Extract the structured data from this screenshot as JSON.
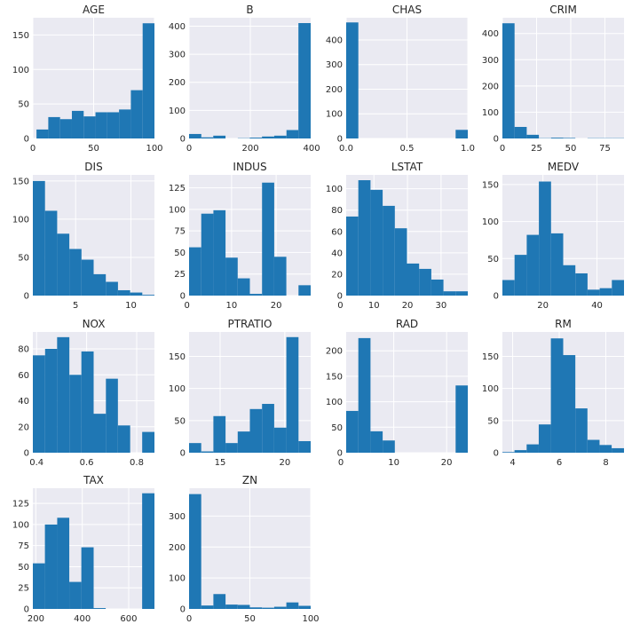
{
  "figure": {
    "background": "#ffffff",
    "panel_background": "#EAEAF2",
    "grid_color": "#ffffff",
    "bar_color": "#1F77B4"
  },
  "chart_data": [
    {
      "type": "bar",
      "title": "AGE",
      "xlim": [
        0,
        100
      ],
      "ylim": [
        0,
        175
      ],
      "xticks": [
        0,
        50,
        100
      ],
      "yticks": [
        0,
        50,
        100,
        150
      ],
      "bins": [
        [
          3,
          12.7
        ],
        [
          12.7,
          22.4
        ],
        [
          22.4,
          32.1
        ],
        [
          32.1,
          41.8
        ],
        [
          41.8,
          51.5
        ],
        [
          51.5,
          61.2
        ],
        [
          61.2,
          70.9
        ],
        [
          70.9,
          80.6
        ],
        [
          80.6,
          90.3
        ],
        [
          90.3,
          100
        ]
      ],
      "values": [
        13,
        31,
        28,
        40,
        32,
        38,
        38,
        42,
        70,
        167
      ]
    },
    {
      "type": "bar",
      "title": "B",
      "xlim": [
        0,
        397
      ],
      "ylim": [
        0,
        430
      ],
      "xticks": [
        0,
        200,
        400
      ],
      "yticks": [
        0,
        100,
        200,
        300,
        400
      ],
      "bins": [
        [
          0,
          40
        ],
        [
          40,
          79
        ],
        [
          79,
          119
        ],
        [
          119,
          159
        ],
        [
          159,
          198
        ],
        [
          198,
          238
        ],
        [
          238,
          278
        ],
        [
          278,
          318
        ],
        [
          318,
          357
        ],
        [
          357,
          397
        ]
      ],
      "values": [
        16,
        4,
        10,
        0,
        1,
        3,
        7,
        10,
        30,
        411
      ]
    },
    {
      "type": "bar",
      "title": "CHAS",
      "xlim": [
        0,
        1
      ],
      "ylim": [
        0,
        490
      ],
      "xticks": [
        0,
        0.5,
        1
      ],
      "xticklabels": [
        "0.0",
        "0.5",
        "1.0"
      ],
      "yticks": [
        0,
        100,
        200,
        300,
        400
      ],
      "bins": [
        [
          0,
          0.1
        ],
        [
          0.1,
          0.2
        ],
        [
          0.2,
          0.3
        ],
        [
          0.3,
          0.4
        ],
        [
          0.4,
          0.5
        ],
        [
          0.5,
          0.6
        ],
        [
          0.6,
          0.7
        ],
        [
          0.7,
          0.8
        ],
        [
          0.8,
          0.9
        ],
        [
          0.9,
          1
        ]
      ],
      "values": [
        471,
        0,
        0,
        0,
        0,
        0,
        0,
        0,
        0,
        35
      ]
    },
    {
      "type": "bar",
      "title": "CRIM",
      "xlim": [
        0,
        89
      ],
      "ylim": [
        0,
        460
      ],
      "xticks": [
        0,
        25,
        50,
        75
      ],
      "yticks": [
        0,
        100,
        200,
        300,
        400
      ],
      "bins": [
        [
          0,
          8.9
        ],
        [
          8.9,
          17.8
        ],
        [
          17.8,
          26.7
        ],
        [
          26.7,
          35.6
        ],
        [
          35.6,
          44.5
        ],
        [
          44.5,
          53.4
        ],
        [
          53.4,
          62.3
        ],
        [
          62.3,
          71.2
        ],
        [
          71.2,
          80.1
        ],
        [
          80.1,
          89
        ]
      ],
      "values": [
        439,
        44,
        14,
        1,
        3,
        2,
        0,
        1,
        1,
        1
      ]
    },
    {
      "type": "bar",
      "title": "DIS",
      "xlim": [
        1.13,
        12.13
      ],
      "ylim": [
        0,
        158
      ],
      "xticks": [
        5,
        10
      ],
      "yticks": [
        0,
        50,
        100,
        150
      ],
      "bins": [
        [
          1.13,
          2.23
        ],
        [
          2.23,
          3.33
        ],
        [
          3.33,
          4.43
        ],
        [
          4.43,
          5.53
        ],
        [
          5.53,
          6.63
        ],
        [
          6.63,
          7.73
        ],
        [
          7.73,
          8.83
        ],
        [
          8.83,
          9.93
        ],
        [
          9.93,
          11.03
        ],
        [
          11.03,
          12.13
        ]
      ],
      "values": [
        150,
        111,
        81,
        61,
        47,
        28,
        18,
        7,
        4,
        1
      ]
    },
    {
      "type": "bar",
      "title": "INDUS",
      "xlim": [
        0.46,
        27.74
      ],
      "ylim": [
        0,
        140
      ],
      "xticks": [
        0,
        10,
        20
      ],
      "yticks": [
        0,
        25,
        50,
        75,
        100,
        125
      ],
      "bins": [
        [
          0.46,
          3.19
        ],
        [
          3.19,
          5.92
        ],
        [
          5.92,
          8.64
        ],
        [
          8.64,
          11.37
        ],
        [
          11.37,
          14.1
        ],
        [
          14.1,
          16.83
        ],
        [
          16.83,
          19.56
        ],
        [
          19.56,
          22.28
        ],
        [
          22.28,
          25.01
        ],
        [
          25.01,
          27.74
        ]
      ],
      "values": [
        56,
        95,
        99,
        44,
        20,
        2,
        131,
        45,
        0,
        12
      ]
    },
    {
      "type": "bar",
      "title": "LSTAT",
      "xlim": [
        1.73,
        37.97
      ],
      "ylim": [
        0,
        113
      ],
      "xticks": [
        0,
        10,
        20,
        30
      ],
      "yticks": [
        0,
        20,
        40,
        60,
        80,
        100
      ],
      "bins": [
        [
          1.73,
          5.35
        ],
        [
          5.35,
          8.98
        ],
        [
          8.98,
          12.6
        ],
        [
          12.6,
          16.23
        ],
        [
          16.23,
          19.85
        ],
        [
          19.85,
          23.47
        ],
        [
          23.47,
          27.1
        ],
        [
          27.1,
          30.72
        ],
        [
          30.72,
          34.35
        ],
        [
          34.35,
          37.97
        ]
      ],
      "values": [
        74,
        108,
        99,
        84,
        63,
        30,
        25,
        15,
        4,
        4
      ]
    },
    {
      "type": "bar",
      "title": "MEDV",
      "xlim": [
        5,
        50
      ],
      "ylim": [
        0,
        163
      ],
      "xticks": [
        20,
        40
      ],
      "yticks": [
        0,
        50,
        100,
        150
      ],
      "bins": [
        [
          5,
          9.5
        ],
        [
          9.5,
          14
        ],
        [
          14,
          18.5
        ],
        [
          18.5,
          23
        ],
        [
          23,
          27.5
        ],
        [
          27.5,
          32
        ],
        [
          32,
          36.5
        ],
        [
          36.5,
          41
        ],
        [
          41,
          45.5
        ],
        [
          45.5,
          50
        ]
      ],
      "values": [
        21,
        55,
        82,
        154,
        84,
        41,
        30,
        8,
        10,
        21
      ]
    },
    {
      "type": "bar",
      "title": "NOX",
      "xlim": [
        0.385,
        0.871
      ],
      "ylim": [
        0,
        93
      ],
      "xticks": [
        0.4,
        0.6,
        0.8
      ],
      "xticklabels": [
        "0.4",
        "0.6",
        "0.8"
      ],
      "yticks": [
        0,
        20,
        40,
        60,
        80
      ],
      "bins": [
        [
          0.385,
          0.434
        ],
        [
          0.434,
          0.482
        ],
        [
          0.482,
          0.531
        ],
        [
          0.531,
          0.579
        ],
        [
          0.579,
          0.628
        ],
        [
          0.628,
          0.677
        ],
        [
          0.677,
          0.725
        ],
        [
          0.725,
          0.774
        ],
        [
          0.774,
          0.822
        ],
        [
          0.822,
          0.871
        ]
      ],
      "values": [
        75,
        80,
        89,
        60,
        78,
        30,
        57,
        21,
        0,
        16
      ]
    },
    {
      "type": "bar",
      "title": "PTRATIO",
      "xlim": [
        12.6,
        22
      ],
      "ylim": [
        0,
        188
      ],
      "xticks": [
        15,
        20
      ],
      "yticks": [
        0,
        50,
        100,
        150
      ],
      "bins": [
        [
          12.6,
          13.54
        ],
        [
          13.54,
          14.48
        ],
        [
          14.48,
          15.42
        ],
        [
          15.42,
          16.36
        ],
        [
          16.36,
          17.3
        ],
        [
          17.3,
          18.24
        ],
        [
          18.24,
          19.18
        ],
        [
          19.18,
          20.12
        ],
        [
          20.12,
          21.06
        ],
        [
          21.06,
          22
        ]
      ],
      "values": [
        15,
        2,
        57,
        15,
        33,
        68,
        76,
        39,
        180,
        18
      ]
    },
    {
      "type": "bar",
      "title": "RAD",
      "xlim": [
        1,
        24
      ],
      "ylim": [
        0,
        237
      ],
      "xticks": [
        0,
        10,
        20
      ],
      "yticks": [
        0,
        50,
        100,
        150,
        200
      ],
      "bins": [
        [
          1,
          3.3
        ],
        [
          3.3,
          5.6
        ],
        [
          5.6,
          7.9
        ],
        [
          7.9,
          10.2
        ],
        [
          10.2,
          12.5
        ],
        [
          12.5,
          14.8
        ],
        [
          14.8,
          17.1
        ],
        [
          17.1,
          19.4
        ],
        [
          19.4,
          21.7
        ],
        [
          21.7,
          24
        ]
      ],
      "values": [
        82,
        225,
        42,
        24,
        0,
        0,
        0,
        0,
        0,
        132
      ]
    },
    {
      "type": "bar",
      "title": "RM",
      "xlim": [
        3.56,
        8.78
      ],
      "ylim": [
        0,
        188
      ],
      "xticks": [
        4,
        6,
        8
      ],
      "yticks": [
        0,
        50,
        100,
        150
      ],
      "bins": [
        [
          3.56,
          4.08
        ],
        [
          4.08,
          4.6
        ],
        [
          4.6,
          5.12
        ],
        [
          5.12,
          5.64
        ],
        [
          5.64,
          6.17
        ],
        [
          6.17,
          6.69
        ],
        [
          6.69,
          7.21
        ],
        [
          7.21,
          7.73
        ],
        [
          7.73,
          8.25
        ],
        [
          8.25,
          8.78
        ]
      ],
      "values": [
        1,
        4,
        13,
        44,
        178,
        152,
        69,
        20,
        12,
        7
      ]
    },
    {
      "type": "bar",
      "title": "TAX",
      "xlim": [
        187,
        711
      ],
      "ylim": [
        0,
        143
      ],
      "xticks": [
        200,
        400,
        600
      ],
      "yticks": [
        0,
        25,
        50,
        75,
        100,
        125
      ],
      "bins": [
        [
          187,
          239
        ],
        [
          239,
          292
        ],
        [
          292,
          344
        ],
        [
          344,
          396
        ],
        [
          396,
          449
        ],
        [
          449,
          501
        ],
        [
          501,
          554
        ],
        [
          554,
          606
        ],
        [
          606,
          658
        ],
        [
          658,
          711
        ]
      ],
      "values": [
        54,
        100,
        108,
        32,
        73,
        1,
        0,
        0,
        0,
        137
      ]
    },
    {
      "type": "bar",
      "title": "ZN",
      "xlim": [
        0,
        100
      ],
      "ylim": [
        0,
        390
      ],
      "xticks": [
        0,
        50,
        100
      ],
      "yticks": [
        0,
        100,
        200,
        300
      ],
      "bins": [
        [
          0,
          10
        ],
        [
          10,
          20
        ],
        [
          20,
          30
        ],
        [
          30,
          40
        ],
        [
          40,
          50
        ],
        [
          50,
          60
        ],
        [
          60,
          70
        ],
        [
          70,
          80
        ],
        [
          80,
          90
        ],
        [
          90,
          100
        ]
      ],
      "values": [
        371,
        11,
        48,
        14,
        13,
        5,
        4,
        7,
        21,
        10
      ]
    }
  ]
}
